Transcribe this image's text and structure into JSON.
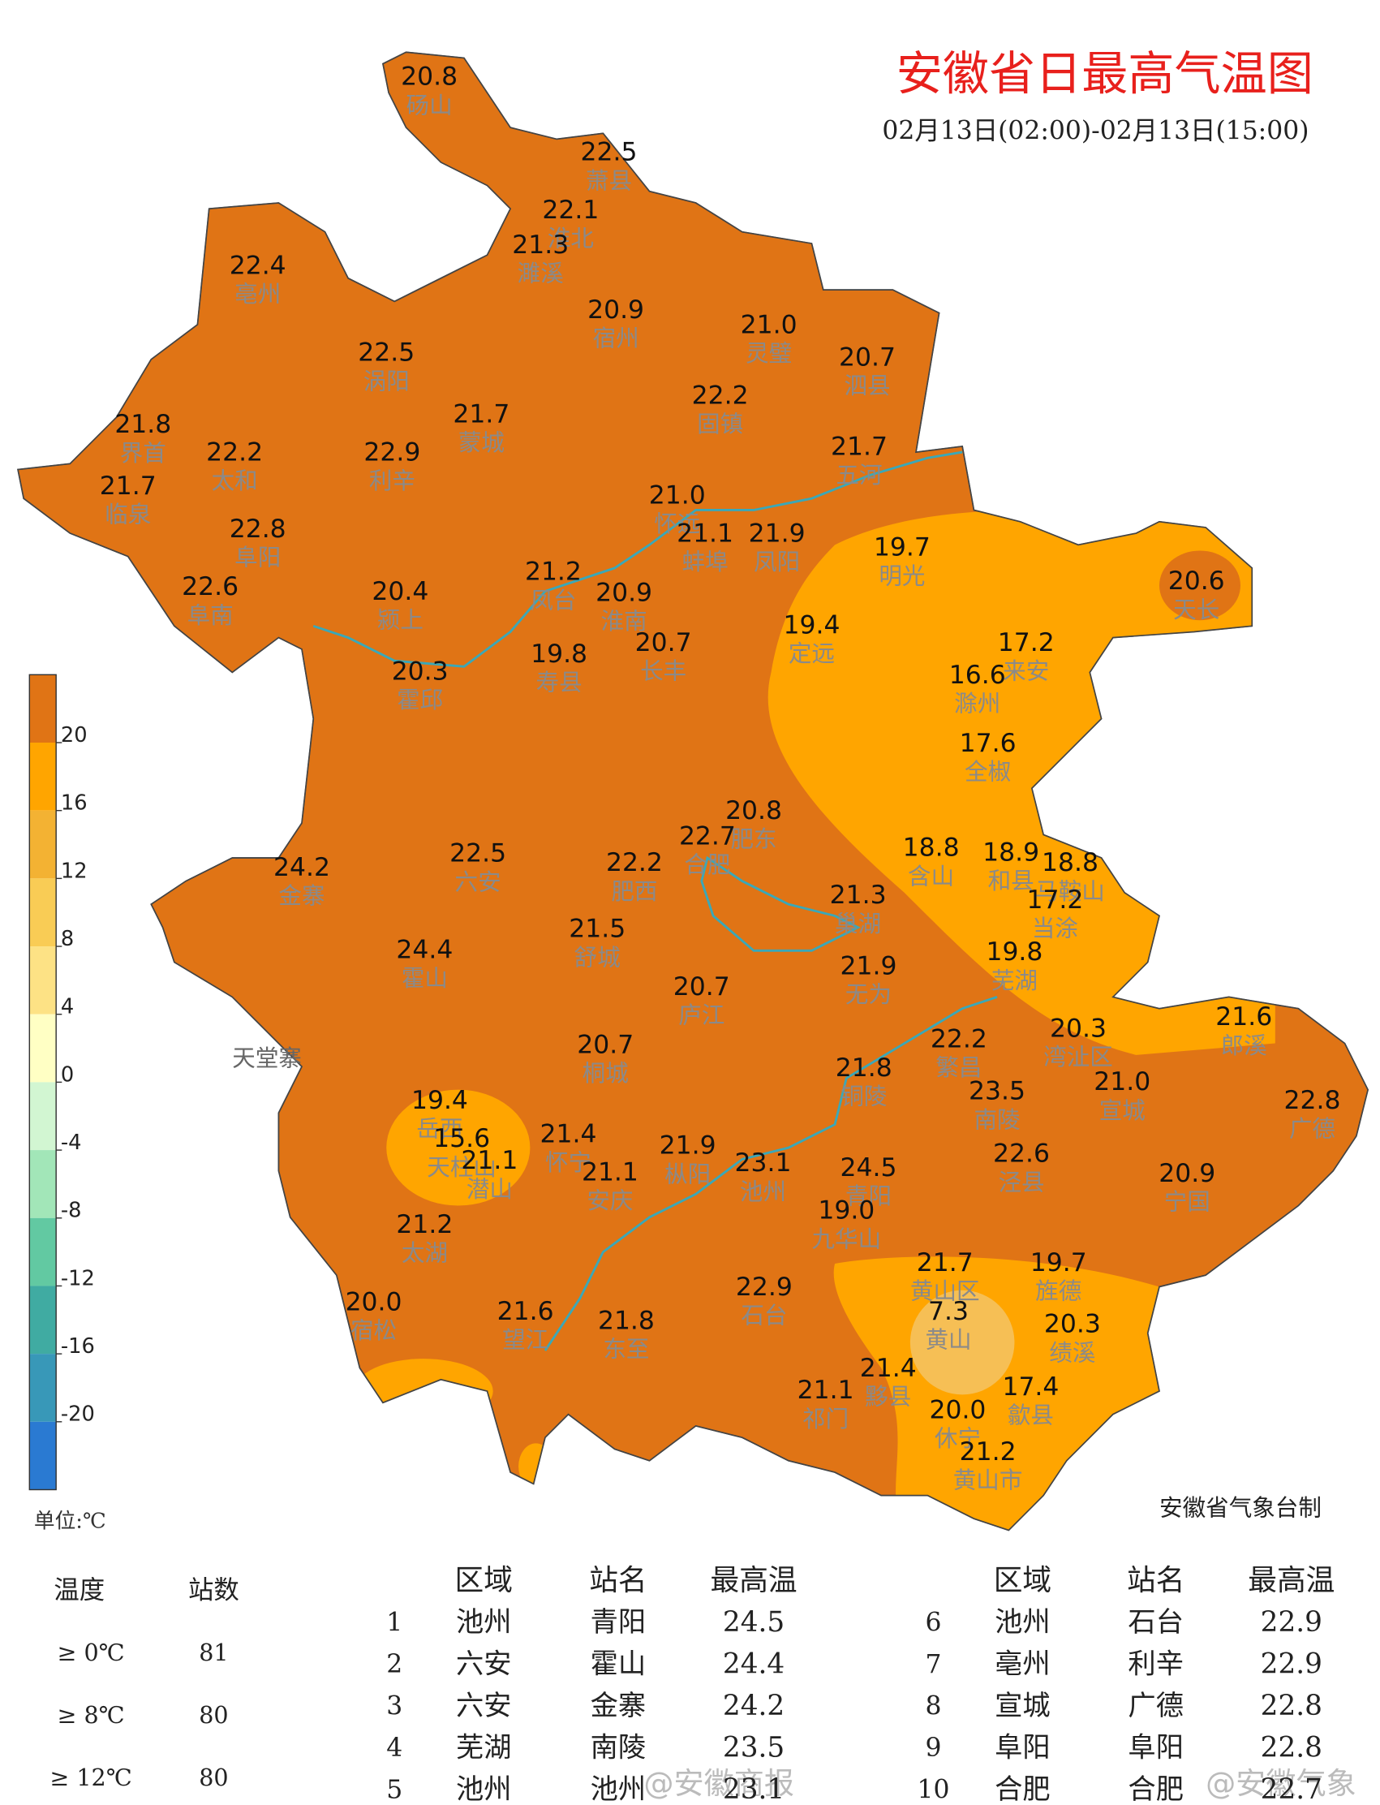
{
  "header": {
    "title": "安徽省日最高气温图",
    "subtitle": "02月13日(02:00)-02月13日(15:00)"
  },
  "legend": {
    "ticks": [
      20,
      16,
      12,
      8,
      4,
      0,
      -4,
      -8,
      -12,
      -16,
      -20
    ],
    "colors": [
      "#e07415",
      "#ffa500",
      "#f3b233",
      "#f9cc55",
      "#fde285",
      "#ffffc4",
      "#d2f6d2",
      "#a2e6b8",
      "#62c9a2",
      "#40aba2",
      "#3898b8",
      "#2a7ad2"
    ],
    "unit": "单位:℃"
  },
  "stations": [
    {
      "name": "砀山",
      "value": "20.8"
    },
    {
      "name": "萧县",
      "value": "22.5"
    },
    {
      "name": "淮北",
      "value": "22.1"
    },
    {
      "name": "濉溪",
      "value": "21.3"
    },
    {
      "name": "亳州",
      "value": "22.4"
    },
    {
      "name": "宿州",
      "value": "20.9"
    },
    {
      "name": "灵璧",
      "value": "21.0"
    },
    {
      "name": "泗县",
      "value": "20.7"
    },
    {
      "name": "涡阳",
      "value": "22.5"
    },
    {
      "name": "固镇",
      "value": "22.2"
    },
    {
      "name": "蒙城",
      "value": "21.7"
    },
    {
      "name": "界首",
      "value": "21.8"
    },
    {
      "name": "太和",
      "value": "22.2"
    },
    {
      "name": "利辛",
      "value": "22.9"
    },
    {
      "name": "五河",
      "value": "21.7"
    },
    {
      "name": "临泉",
      "value": "21.7"
    },
    {
      "name": "怀远",
      "value": "21.0"
    },
    {
      "name": "蚌埠",
      "value": "21.1"
    },
    {
      "name": "凤阳",
      "value": "21.9"
    },
    {
      "name": "阜阳",
      "value": "22.8"
    },
    {
      "name": "明光",
      "value": "19.7"
    },
    {
      "name": "阜南",
      "value": "22.6"
    },
    {
      "name": "颍上",
      "value": "20.4"
    },
    {
      "name": "凤台",
      "value": "21.2"
    },
    {
      "name": "淮南",
      "value": "20.9"
    },
    {
      "name": "天长",
      "value": "20.6"
    },
    {
      "name": "定远",
      "value": "19.4"
    },
    {
      "name": "来安",
      "value": "17.2"
    },
    {
      "name": "霍邱",
      "value": "20.3"
    },
    {
      "name": "寿县",
      "value": "19.8"
    },
    {
      "name": "长丰",
      "value": "20.7"
    },
    {
      "name": "滁州",
      "value": "16.6"
    },
    {
      "name": "全椒",
      "value": "17.6"
    },
    {
      "name": "肥东",
      "value": "20.8"
    },
    {
      "name": "合肥",
      "value": "22.7"
    },
    {
      "name": "金寨",
      "value": "24.2"
    },
    {
      "name": "六安",
      "value": "22.5"
    },
    {
      "name": "肥西",
      "value": "22.2"
    },
    {
      "name": "含山",
      "value": "18.8"
    },
    {
      "name": "和县",
      "value": "18.9"
    },
    {
      "name": "马鞍山",
      "value": "18.8"
    },
    {
      "name": "巢湖",
      "value": "21.3"
    },
    {
      "name": "当涂",
      "value": "17.2"
    },
    {
      "name": "舒城",
      "value": "21.5"
    },
    {
      "name": "霍山",
      "value": "24.4"
    },
    {
      "name": "无为",
      "value": "21.9"
    },
    {
      "name": "芜湖",
      "value": "19.8"
    },
    {
      "name": "庐江",
      "value": "20.7"
    },
    {
      "name": "湾沚区",
      "value": "20.3"
    },
    {
      "name": "郎溪",
      "value": "21.6"
    },
    {
      "name": "桐城",
      "value": "20.7"
    },
    {
      "name": "繁昌",
      "value": "22.2"
    },
    {
      "name": "铜陵",
      "value": "21.8"
    },
    {
      "name": "宣城",
      "value": "21.0"
    },
    {
      "name": "南陵",
      "value": "23.5"
    },
    {
      "name": "广德",
      "value": "22.8"
    },
    {
      "name": "岳西",
      "value": "19.4"
    },
    {
      "name": "天柱山",
      "value": "15.6"
    },
    {
      "name": "潜山",
      "value": "21.1"
    },
    {
      "name": "怀宁",
      "value": "21.4"
    },
    {
      "name": "枞阳",
      "value": "21.9"
    },
    {
      "name": "安庆",
      "value": "21.1"
    },
    {
      "name": "池州",
      "value": "23.1"
    },
    {
      "name": "青阳",
      "value": "24.5"
    },
    {
      "name": "泾县",
      "value": "22.6"
    },
    {
      "name": "宁国",
      "value": "20.9"
    },
    {
      "name": "太湖",
      "value": "21.2"
    },
    {
      "name": "九华山",
      "value": "19.0"
    },
    {
      "name": "黄山区",
      "value": "21.7"
    },
    {
      "name": "旌德",
      "value": "19.7"
    },
    {
      "name": "宿松",
      "value": "20.0"
    },
    {
      "name": "石台",
      "value": "22.9"
    },
    {
      "name": "黄山",
      "value": "7.3"
    },
    {
      "name": "绩溪",
      "value": "20.3"
    },
    {
      "name": "望江",
      "value": "21.6"
    },
    {
      "name": "东至",
      "value": "21.8"
    },
    {
      "name": "黟县",
      "value": "21.4"
    },
    {
      "name": "祁门",
      "value": "21.1"
    },
    {
      "name": "歙县",
      "value": "17.4"
    },
    {
      "name": "休宁",
      "value": "20.0"
    },
    {
      "name": "黄山市",
      "value": "21.2"
    }
  ],
  "labels": [
    "天堂寨"
  ],
  "credit": "安徽省气象台制",
  "stats": {
    "headers": [
      "温度",
      "站数"
    ],
    "rows": [
      [
        "≥ 0℃",
        81
      ],
      [
        "≥ 8℃",
        80
      ],
      [
        "≥ 12℃",
        80
      ]
    ]
  },
  "ranking": {
    "headers": [
      "区域",
      "站名",
      "最高温"
    ],
    "rows": [
      [
        1,
        "池州",
        "青阳",
        "24.5"
      ],
      [
        2,
        "六安",
        "霍山",
        "24.4"
      ],
      [
        3,
        "六安",
        "金寨",
        "24.2"
      ],
      [
        4,
        "芜湖",
        "南陵",
        "23.5"
      ],
      [
        5,
        "池州",
        "池州",
        "23.1"
      ],
      [
        6,
        "池州",
        "石台",
        "22.9"
      ],
      [
        7,
        "亳州",
        "利辛",
        "22.9"
      ],
      [
        8,
        "宣城",
        "广德",
        "22.8"
      ],
      [
        9,
        "阜阳",
        "阜阳",
        "22.8"
      ],
      [
        10,
        "合肥",
        "合肥",
        "22.7"
      ]
    ]
  },
  "watermarks": [
    "@安徽商报",
    "@安徽气象"
  ]
}
